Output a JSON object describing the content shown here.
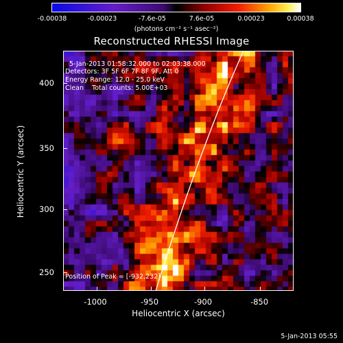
{
  "colorbar": {
    "ticks": [
      "-0.00038",
      "-0.00023",
      "-7.6e-05",
      "7.6e-05",
      "0.00023",
      "0.00038"
    ],
    "units": "(photons cm⁻² s⁻¹ asec⁻²)"
  },
  "title": "Reconstructed RHESSI Image",
  "annotations": {
    "time_range": "5-Jan-2013 01:58:32.000 to 02:03:38.000",
    "detectors": "Detectors: 3F 5F 6F 7F 8F 9F, Att 0",
    "energy": "Energy Range: 12.0 - 25.0 keV",
    "algorithm": "Clean    Total counts: 5.00E+03",
    "peak": "Position of Peak = [-932,232]"
  },
  "axes": {
    "xlabel": "Heliocentric X (arcsec)",
    "ylabel": "Heliocentric Y (arcsec)",
    "xticks": [
      "-1000",
      "-950",
      "-900",
      "-850"
    ],
    "yticks": [
      "400",
      "350",
      "300",
      "250"
    ]
  },
  "footer_date": "5-Jan-2013 05:55",
  "colors": {
    "background": "#000000",
    "text": "#ffffff",
    "limb_line": "#ffffff"
  }
}
